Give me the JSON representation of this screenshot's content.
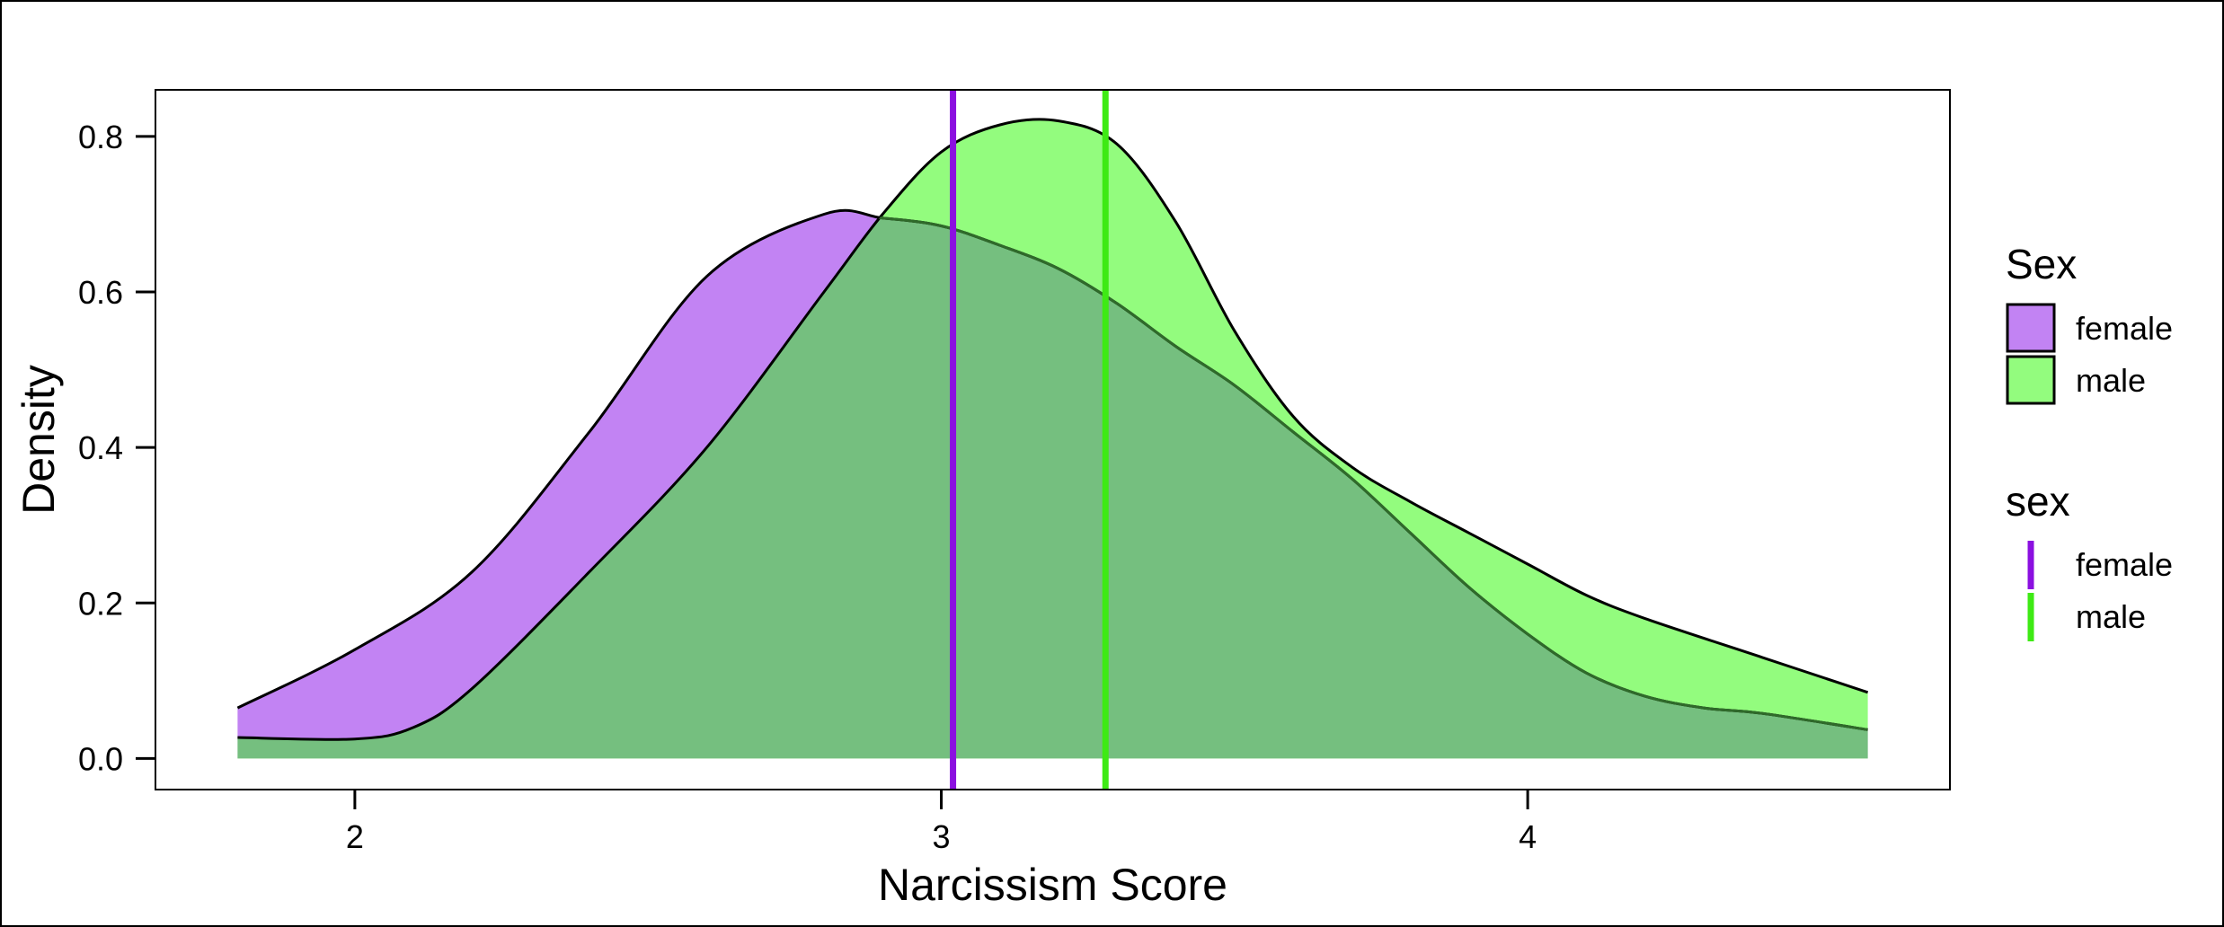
{
  "chart_data": {
    "type": "area",
    "title": "",
    "xlabel": "Narcissism Score",
    "ylabel": "Density",
    "xlim": [
      1.66,
      4.72
    ],
    "ylim": [
      -0.04,
      0.86
    ],
    "x_ticks": [
      {
        "value": 2,
        "label": "2"
      },
      {
        "value": 3,
        "label": "3"
      },
      {
        "value": 4,
        "label": "4"
      }
    ],
    "y_ticks": [
      {
        "value": 0.0,
        "label": "0.0"
      },
      {
        "value": 0.2,
        "label": "0.2"
      },
      {
        "value": 0.4,
        "label": "0.4"
      },
      {
        "value": 0.6,
        "label": "0.6"
      },
      {
        "value": 0.8,
        "label": "0.8"
      }
    ],
    "grid": false,
    "legend_position": "right",
    "fill_legend": {
      "title": "Sex",
      "entries": [
        {
          "label": "female",
          "color": "#C283F3"
        },
        {
          "label": "male",
          "color": "#93FC7E"
        }
      ]
    },
    "line_legend": {
      "title": "sex",
      "entries": [
        {
          "label": "female",
          "color": "#8B10E0"
        },
        {
          "label": "male",
          "color": "#3EEA14"
        }
      ]
    },
    "overlap_color": "#75BF7F",
    "series": [
      {
        "name": "female",
        "fill": "#C283F3",
        "x": [
          1.8,
          2.0,
          2.2,
          2.4,
          2.6,
          2.8,
          2.9,
          3.0,
          3.1,
          3.2,
          3.3,
          3.4,
          3.5,
          3.6,
          3.7,
          3.8,
          3.9,
          4.0,
          4.1,
          4.2,
          4.3,
          4.4,
          4.58
        ],
        "y": [
          0.065,
          0.14,
          0.24,
          0.42,
          0.62,
          0.7,
          0.695,
          0.685,
          0.66,
          0.63,
          0.585,
          0.53,
          0.48,
          0.42,
          0.36,
          0.29,
          0.22,
          0.16,
          0.11,
          0.08,
          0.065,
          0.058,
          0.037
        ]
      },
      {
        "name": "male",
        "fill": "#93FC7E",
        "x": [
          1.8,
          2.0,
          2.1,
          2.2,
          2.4,
          2.6,
          2.8,
          2.9,
          3.0,
          3.1,
          3.2,
          3.3,
          3.4,
          3.5,
          3.6,
          3.7,
          3.8,
          3.9,
          4.0,
          4.1,
          4.2,
          4.4,
          4.58
        ],
        "y": [
          0.027,
          0.025,
          0.04,
          0.09,
          0.24,
          0.4,
          0.6,
          0.7,
          0.78,
          0.815,
          0.82,
          0.79,
          0.69,
          0.55,
          0.44,
          0.375,
          0.33,
          0.29,
          0.25,
          0.21,
          0.18,
          0.13,
          0.085
        ]
      }
    ],
    "vlines": [
      {
        "name": "female",
        "x": 3.02,
        "color": "#8B10E0"
      },
      {
        "name": "male",
        "x": 3.28,
        "color": "#3EEA14"
      }
    ]
  }
}
